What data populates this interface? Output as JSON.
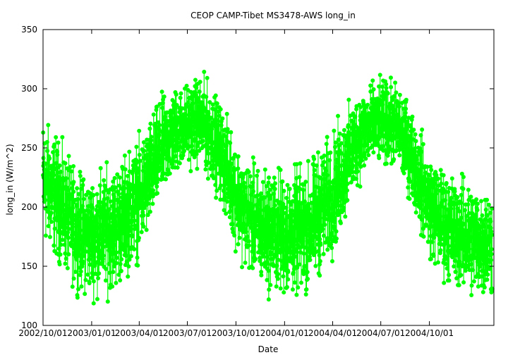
{
  "chart_data": {
    "type": "scatter",
    "title": "CEOP CAMP-Tibet MS3478-AWS  long_in",
    "xlabel": "Date",
    "ylabel": "long_in (W/m^2)",
    "xlim": [
      "2002-10-01",
      "2005-01-31"
    ],
    "ylim": [
      100,
      350
    ],
    "yticks": [
      100,
      150,
      200,
      250,
      300,
      350
    ],
    "xticks": [
      "2002/10/01",
      "2003/01/01",
      "2003/04/01",
      "2003/07/01",
      "2003/10/01",
      "2004/01/01",
      "2004/04/01",
      "2004/07/01",
      "2004/10/01"
    ],
    "grid": false,
    "legend": "none",
    "marker_color": "#00ff00",
    "series": [
      {
        "x": [
          "2002-10-01",
          "2002-10-15",
          "2002-11-01",
          "2002-11-15",
          "2002-12-01",
          "2002-12-15",
          "2003-01-01",
          "2003-01-15",
          "2003-02-01",
          "2003-02-15",
          "2003-03-01",
          "2003-03-15",
          "2003-04-01",
          "2003-04-15",
          "2003-05-01",
          "2003-05-15",
          "2003-06-01",
          "2003-06-15",
          "2003-07-01",
          "2003-07-15",
          "2003-08-01",
          "2003-08-15",
          "2003-09-01",
          "2003-09-15",
          "2003-10-01",
          "2003-10-15",
          "2003-11-01",
          "2003-11-15",
          "2003-12-01",
          "2003-12-15",
          "2004-01-01",
          "2004-01-15",
          "2004-02-01",
          "2004-02-15",
          "2004-03-01",
          "2004-03-15",
          "2004-04-01",
          "2004-04-15",
          "2004-05-01",
          "2004-05-15",
          "2004-06-01",
          "2004-06-15",
          "2004-07-01",
          "2004-07-15",
          "2004-08-01",
          "2004-08-15",
          "2004-09-01",
          "2004-09-15",
          "2004-10-01",
          "2004-10-15",
          "2004-11-01",
          "2004-11-15",
          "2004-12-01",
          "2004-12-15",
          "2005-01-01",
          "2005-01-31"
        ],
        "min": [
          160,
          155,
          145,
          135,
          125,
          120,
          118,
          118,
          120,
          122,
          130,
          140,
          150,
          165,
          185,
          200,
          215,
          225,
          228,
          230,
          225,
          215,
          200,
          180,
          160,
          145,
          135,
          125,
          120,
          118,
          115,
          115,
          118,
          120,
          130,
          140,
          150,
          165,
          190,
          210,
          220,
          228,
          230,
          230,
          225,
          210,
          195,
          170,
          150,
          140,
          130,
          125,
          120,
          118,
          115,
          115
        ],
        "max": [
          285,
          275,
          265,
          250,
          240,
          235,
          235,
          238,
          242,
          245,
          250,
          258,
          265,
          275,
          290,
          300,
          305,
          308,
          310,
          314,
          316,
          308,
          295,
          280,
          265,
          250,
          245,
          240,
          242,
          242,
          240,
          240,
          242,
          245,
          255,
          262,
          270,
          282,
          292,
          302,
          308,
          310,
          312,
          312,
          310,
          300,
          285,
          270,
          255,
          245,
          240,
          235,
          232,
          230,
          228,
          225
        ]
      }
    ]
  }
}
